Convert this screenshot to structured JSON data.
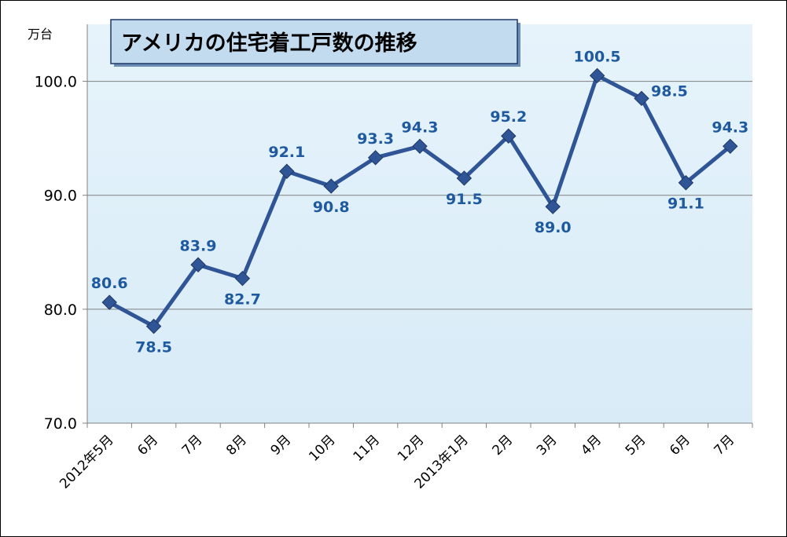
{
  "chart_data": {
    "type": "line",
    "title": "アメリカの住宅着工戸数の推移",
    "unit_label": "万台",
    "categories": [
      "2012年5月",
      "6月",
      "7月",
      "8月",
      "9月",
      "10月",
      "11月",
      "12月",
      "2013年1月",
      "2月",
      "3月",
      "4月",
      "5月",
      "6月",
      "7月"
    ],
    "series": [
      {
        "name": "住宅着工戸数",
        "values": [
          80.6,
          78.5,
          83.9,
          82.7,
          92.1,
          90.8,
          93.3,
          94.3,
          91.5,
          95.2,
          89.0,
          100.5,
          98.5,
          91.1,
          94.3
        ],
        "labels": [
          "80.6",
          "78.5",
          "83.9",
          "82.7",
          "92.1",
          "90.8",
          "93.3",
          "94.3",
          "91.5",
          "95.2",
          "89.0",
          "100.5",
          "98.5",
          "91.1",
          "94.3"
        ],
        "label_positions": [
          "above",
          "below",
          "above",
          "below",
          "above",
          "below",
          "above",
          "above",
          "below",
          "above",
          "below",
          "above",
          "right",
          "below",
          "above"
        ],
        "color": "#2f5597"
      }
    ],
    "ylim": [
      70,
      105
    ],
    "yticks": [
      70,
      80,
      90,
      100
    ],
    "ytick_labels": [
      "70.0",
      "80.0",
      "90.0",
      "100.0"
    ],
    "grid": true,
    "xlabel": "",
    "ylabel": ""
  },
  "colors": {
    "line": "#2f5597",
    "marker": "#2f5597",
    "data_label": "#1f5aa0",
    "plot_bg": "#e3f1fa",
    "title_bg": "#c3dbef",
    "gridline": "#808080"
  }
}
